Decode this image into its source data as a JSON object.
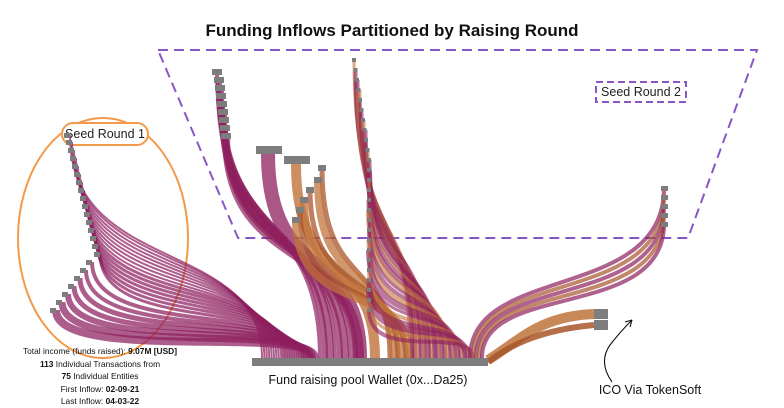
{
  "title": "Funding Inflows Partitioned by Raising Round",
  "callouts": {
    "seed_round_1": "Seed Round 1",
    "seed_round_2": "Seed Round 2",
    "pool_wallet": "Fund raising pool Wallet (0x...Da25)",
    "ico": "ICO Via TokenSoft"
  },
  "stats": {
    "income_label": "Total income (funds raised):",
    "income_value": "9.07M [USD]",
    "tx_count": "113",
    "tx_label": "Individual Transactions from",
    "entity_count": "75",
    "entity_label": "Individual Entities",
    "first_label": "First Inflow:",
    "first_value": "02-09-21",
    "last_label": "Last Inflow:",
    "last_value": "04-03-22"
  },
  "colors": {
    "magenta": "#8e1f5e",
    "brown": "#a8562c",
    "tan": "#c0733b",
    "round1_border": "#f39a4a",
    "round2_border": "#8a55c7",
    "node": "#7d7d7d"
  }
}
